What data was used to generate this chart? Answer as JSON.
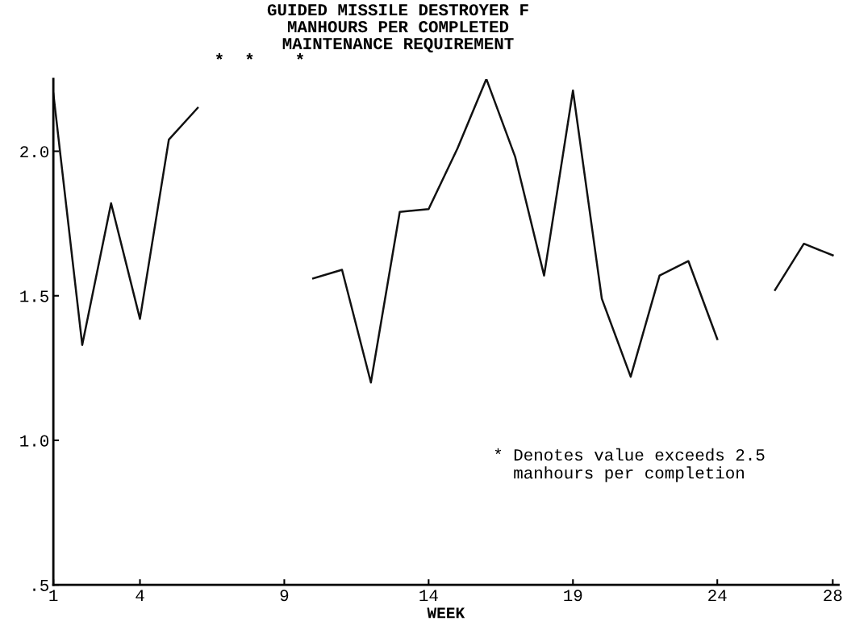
{
  "chart_data": {
    "type": "line",
    "title": "GUIDED MISSILE DESTROYER F\nMANHOURS PER COMPLETED\nMAINTENANCE REQUIREMENT",
    "xlabel": "WEEK",
    "x": [
      1,
      2,
      3,
      4,
      5,
      6,
      7,
      8,
      9,
      10,
      11,
      12,
      13,
      14,
      15,
      16,
      17,
      18,
      19,
      20,
      21,
      22,
      23,
      24,
      25,
      26,
      27,
      28
    ],
    "series": [
      {
        "color": "#111111",
        "values": [
          2.2,
          1.33,
          1.82,
          1.42,
          2.04,
          2.15,
          null,
          null,
          null,
          1.56,
          1.59,
          1.2,
          1.79,
          1.8,
          2.01,
          2.25,
          1.98,
          1.57,
          2.21,
          1.49,
          1.22,
          1.57,
          1.62,
          1.35,
          null,
          1.52,
          1.68,
          1.64
        ]
      }
    ],
    "xlim": [
      1,
      28.2
    ],
    "xticks": [
      1,
      4,
      9,
      14,
      19,
      24,
      28
    ],
    "ylim": [
      0.5,
      2.25
    ],
    "yticks": [
      {
        "value": 0.5,
        "label": ".5"
      },
      {
        "value": 1.0,
        "label": "1.0"
      },
      {
        "value": 1.5,
        "label": "1.5"
      },
      {
        "value": 2.0,
        "label": "2.0"
      }
    ],
    "annotations": [
      "*  *    *",
      "* Denotes value exceeds 2.5\n  manhours per completion"
    ],
    "grid": false,
    "legend": false,
    "marker": "none",
    "line_style": "solid"
  }
}
